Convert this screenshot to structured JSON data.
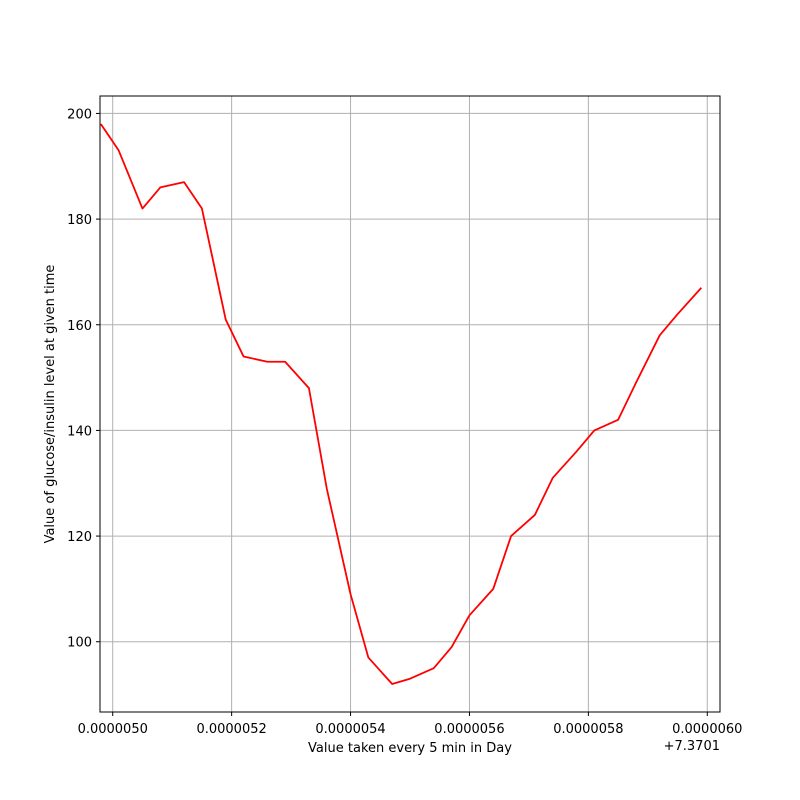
{
  "chart_data": {
    "type": "line",
    "title": "",
    "xlabel": "Value taken every 5 min in Day",
    "ylabel": "Value of glucose/insulin level at given time",
    "x_offset_label": "+7.3701",
    "xlim": [
      4.9786e-06,
      6.0214e-06
    ],
    "ylim": [
      86.7,
      203.3
    ],
    "x_ticks": [
      {
        "value": 5e-06,
        "label": "0.0000050"
      },
      {
        "value": 5.2e-06,
        "label": "0.0000052"
      },
      {
        "value": 5.4e-06,
        "label": "0.0000054"
      },
      {
        "value": 5.6e-06,
        "label": "0.0000056"
      },
      {
        "value": 5.8e-06,
        "label": "0.0000058"
      },
      {
        "value": 6e-06,
        "label": "0.0000060"
      }
    ],
    "y_ticks": [
      {
        "value": 100,
        "label": "100"
      },
      {
        "value": 120,
        "label": "120"
      },
      {
        "value": 140,
        "label": "140"
      },
      {
        "value": 160,
        "label": "160"
      },
      {
        "value": 180,
        "label": "180"
      },
      {
        "value": 200,
        "label": "200"
      }
    ],
    "grid": true,
    "series": [
      {
        "color": "#ff0000",
        "x": [
          4.98e-06,
          5.01e-06,
          5.05e-06,
          5.08e-06,
          5.12e-06,
          5.15e-06,
          5.19e-06,
          5.22e-06,
          5.26e-06,
          5.29e-06,
          5.33e-06,
          5.36e-06,
          5.4e-06,
          5.43e-06,
          5.47e-06,
          5.5e-06,
          5.54e-06,
          5.57e-06,
          5.6e-06,
          5.64e-06,
          5.67e-06,
          5.71e-06,
          5.74e-06,
          5.78e-06,
          5.81e-06,
          5.85e-06,
          5.88e-06,
          5.92e-06,
          5.95e-06,
          5.99e-06
        ],
        "y": [
          198,
          193,
          182,
          186,
          187,
          182,
          161,
          154,
          153,
          153,
          148,
          129,
          109,
          97,
          92,
          93,
          95,
          99,
          105,
          110,
          120,
          124,
          131,
          136,
          140,
          142,
          149,
          158,
          162,
          167
        ]
      }
    ]
  }
}
